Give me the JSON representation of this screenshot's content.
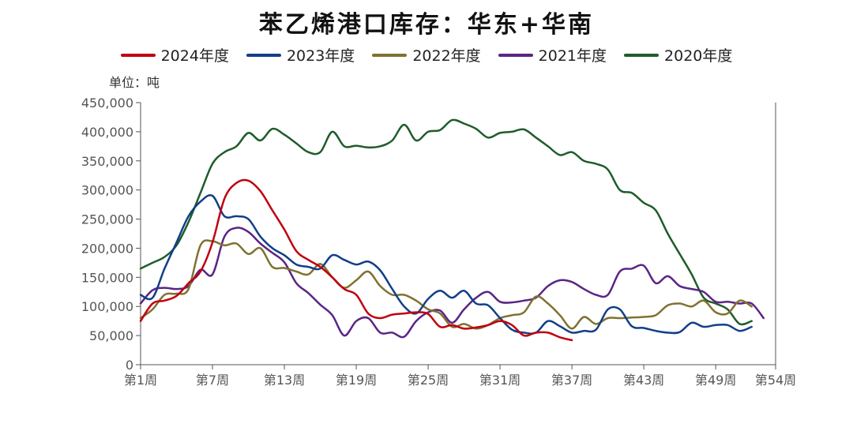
{
  "chart_data": {
    "type": "line",
    "title": "苯乙烯港口库存：华东+华南",
    "unit_label": "单位：吨",
    "xlabel": "",
    "ylabel": "",
    "xlim": [
      1,
      54
    ],
    "ylim": [
      0,
      450000
    ],
    "y_ticks": [
      0,
      50000,
      100000,
      150000,
      200000,
      250000,
      300000,
      350000,
      400000,
      450000
    ],
    "y_tick_labels": [
      "0",
      "50,000",
      "100,000",
      "150,000",
      "200,000",
      "250,000",
      "300,000",
      "350,000",
      "400,000",
      "450,000"
    ],
    "x_ticks": [
      1,
      7,
      13,
      19,
      25,
      31,
      37,
      43,
      49,
      54
    ],
    "x_tick_labels": [
      "第1周",
      "第7周",
      "第13周",
      "第19周",
      "第25周",
      "第31周",
      "第37周",
      "第43周",
      "第49周",
      "第54周"
    ],
    "grid": false,
    "legend_position": "top",
    "series": [
      {
        "name": "2020年度",
        "color": "#1f5c2a",
        "x": [
          1,
          2,
          3,
          4,
          5,
          6,
          7,
          8,
          9,
          10,
          11,
          12,
          13,
          14,
          15,
          16,
          17,
          18,
          19,
          20,
          21,
          22,
          23,
          24,
          25,
          26,
          27,
          28,
          29,
          30,
          31,
          32,
          33,
          34,
          35,
          36,
          37,
          38,
          39,
          40,
          41,
          42,
          43,
          44,
          45,
          46,
          47,
          48,
          49,
          50,
          51,
          52
        ],
        "values": [
          165000,
          175000,
          185000,
          205000,
          245000,
          295000,
          345000,
          365000,
          375000,
          398000,
          385000,
          405000,
          395000,
          380000,
          365000,
          365000,
          400000,
          375000,
          376000,
          373000,
          375000,
          385000,
          412000,
          385000,
          400000,
          403000,
          420000,
          414000,
          405000,
          390000,
          398000,
          400000,
          404000,
          390000,
          375000,
          360000,
          365000,
          350000,
          345000,
          335000,
          300000,
          295000,
          278000,
          265000,
          225000,
          190000,
          155000,
          115000,
          105000,
          95000,
          70000,
          75000
        ]
      },
      {
        "name": "2021年度",
        "color": "#5a2585",
        "x": [
          1,
          2,
          3,
          4,
          5,
          6,
          7,
          8,
          9,
          10,
          11,
          12,
          13,
          14,
          15,
          16,
          17,
          18,
          19,
          20,
          21,
          22,
          23,
          24,
          25,
          26,
          27,
          28,
          29,
          30,
          31,
          32,
          33,
          34,
          35,
          36,
          37,
          38,
          39,
          40,
          41,
          42,
          43,
          44,
          45,
          46,
          47,
          48,
          49,
          50,
          51,
          52,
          53
        ],
        "values": [
          105000,
          128000,
          132000,
          130000,
          135000,
          163000,
          155000,
          220000,
          235000,
          228000,
          208000,
          192000,
          176000,
          140000,
          123000,
          103000,
          85000,
          50000,
          75000,
          80000,
          55000,
          55000,
          48000,
          75000,
          90000,
          93000,
          72000,
          95000,
          115000,
          125000,
          108000,
          107000,
          110000,
          115000,
          135000,
          145000,
          142000,
          130000,
          120000,
          120000,
          160000,
          165000,
          170000,
          140000,
          152000,
          135000,
          130000,
          125000,
          108000,
          108000,
          105000,
          105000,
          80000
        ]
      },
      {
        "name": "2022年度",
        "color": "#7f7230",
        "x": [
          1,
          2,
          3,
          4,
          5,
          6,
          7,
          8,
          9,
          10,
          11,
          12,
          13,
          14,
          15,
          16,
          17,
          18,
          19,
          20,
          21,
          22,
          23,
          24,
          25,
          26,
          27,
          28,
          29,
          30,
          31,
          32,
          33,
          34,
          35,
          36,
          37,
          38,
          39,
          40,
          41,
          42,
          43,
          44,
          45,
          46,
          47,
          48,
          49,
          50,
          51,
          52
        ],
        "values": [
          80000,
          95000,
          120000,
          122000,
          130000,
          205000,
          212000,
          205000,
          208000,
          190000,
          200000,
          168000,
          166000,
          160000,
          155000,
          173000,
          150000,
          132000,
          145000,
          160000,
          135000,
          120000,
          120000,
          110000,
          95000,
          88000,
          65000,
          70000,
          62000,
          68000,
          80000,
          85000,
          90000,
          117000,
          105000,
          85000,
          62000,
          82000,
          70000,
          80000,
          80000,
          81000,
          82000,
          85000,
          102000,
          105000,
          100000,
          110000,
          90000,
          88000,
          110000,
          100000
        ]
      },
      {
        "name": "2023年度",
        "color": "#123f87",
        "x": [
          1,
          2,
          3,
          4,
          5,
          6,
          7,
          8,
          9,
          10,
          11,
          12,
          13,
          14,
          15,
          16,
          17,
          18,
          19,
          20,
          21,
          22,
          23,
          24,
          25,
          26,
          27,
          28,
          29,
          30,
          31,
          32,
          33,
          34,
          35,
          36,
          37,
          38,
          39,
          40,
          41,
          42,
          43,
          44,
          45,
          46,
          47,
          48,
          49,
          50,
          51,
          52
        ],
        "values": [
          120000,
          115000,
          165000,
          210000,
          255000,
          280000,
          290000,
          255000,
          255000,
          250000,
          220000,
          200000,
          188000,
          172000,
          168000,
          165000,
          188000,
          180000,
          172000,
          177000,
          162000,
          130000,
          100000,
          88000,
          113000,
          127000,
          115000,
          127000,
          105000,
          102000,
          80000,
          60000,
          55000,
          55000,
          75000,
          66000,
          55000,
          58000,
          60000,
          95000,
          95000,
          66000,
          63000,
          58000,
          55000,
          56000,
          72000,
          65000,
          68000,
          68000,
          58000,
          65000
        ]
      },
      {
        "name": "2024年度",
        "color": "#c00010",
        "x": [
          1,
          2,
          3,
          4,
          5,
          6,
          7,
          8,
          9,
          10,
          11,
          12,
          13,
          14,
          15,
          16,
          17,
          18,
          19,
          20,
          21,
          22,
          23,
          24,
          25,
          26,
          27,
          28,
          29,
          30,
          31,
          32,
          33,
          34,
          35,
          36,
          37
        ],
        "values": [
          75000,
          105000,
          110000,
          118000,
          140000,
          160000,
          210000,
          285000,
          312000,
          316000,
          298000,
          265000,
          232000,
          195000,
          180000,
          168000,
          150000,
          130000,
          120000,
          88000,
          80000,
          86000,
          88000,
          90000,
          87000,
          65000,
          68000,
          62000,
          64000,
          68000,
          75000,
          68000,
          50000,
          55000,
          55000,
          47000,
          42000
        ]
      }
    ]
  },
  "legend_order": [
    "2024年度",
    "2023年度",
    "2022年度",
    "2021年度",
    "2020年度"
  ]
}
